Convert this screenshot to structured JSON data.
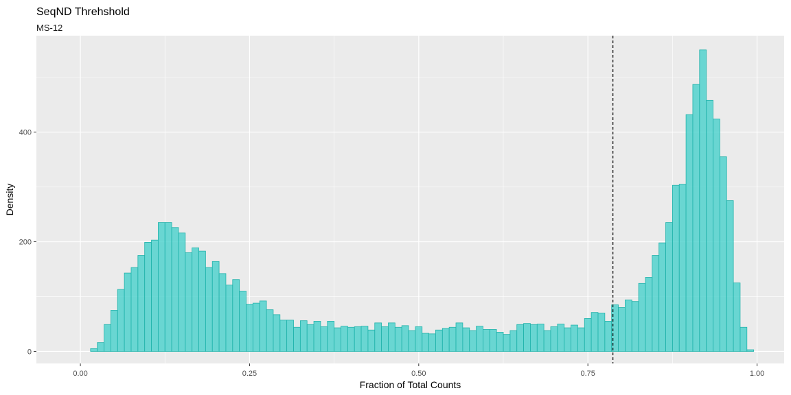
{
  "chart_data": {
    "type": "bar",
    "title": "SeqND Threhshold",
    "subtitle": "MS-12",
    "xlabel": "Fraction of Total Counts",
    "ylabel": "Density",
    "xlim": [
      -0.065,
      1.04
    ],
    "ylim": [
      -22,
      576
    ],
    "x_ticks": [
      0,
      0.25,
      0.5,
      0.75,
      1
    ],
    "x_tick_labels": [
      "0.00",
      "0.25",
      "0.50",
      "0.75",
      "1.00"
    ],
    "y_ticks": [
      0,
      200,
      400
    ],
    "y_tick_labels": [
      "0",
      "200",
      "400"
    ],
    "grid": true,
    "legend": "none",
    "bin_width": 0.01,
    "bin_start": 0.015,
    "threshold": 0.787,
    "fill_color": "#48d1cc",
    "outline_color": "#20b2aa",
    "threshold_color": "#000000",
    "panel_color": "#ebebeb",
    "values": [
      5,
      16,
      49,
      75,
      113,
      143,
      153,
      175,
      199,
      203,
      235,
      235,
      226,
      216,
      180,
      189,
      183,
      153,
      164,
      142,
      121,
      131,
      110,
      86,
      88,
      92,
      76,
      67,
      57,
      57,
      44,
      56,
      49,
      55,
      45,
      55,
      43,
      46,
      44,
      45,
      46,
      39,
      52,
      45,
      52,
      44,
      47,
      38,
      45,
      33,
      32,
      39,
      42,
      44,
      52,
      43,
      38,
      46,
      40,
      40,
      35,
      31,
      38,
      49,
      51,
      49,
      50,
      38,
      45,
      50,
      43,
      48,
      43,
      60,
      71,
      70,
      55,
      85,
      80,
      94,
      91,
      124,
      135,
      175,
      198,
      235,
      303,
      305,
      432,
      487,
      550,
      458,
      424,
      355,
      275,
      125,
      44,
      3
    ]
  }
}
